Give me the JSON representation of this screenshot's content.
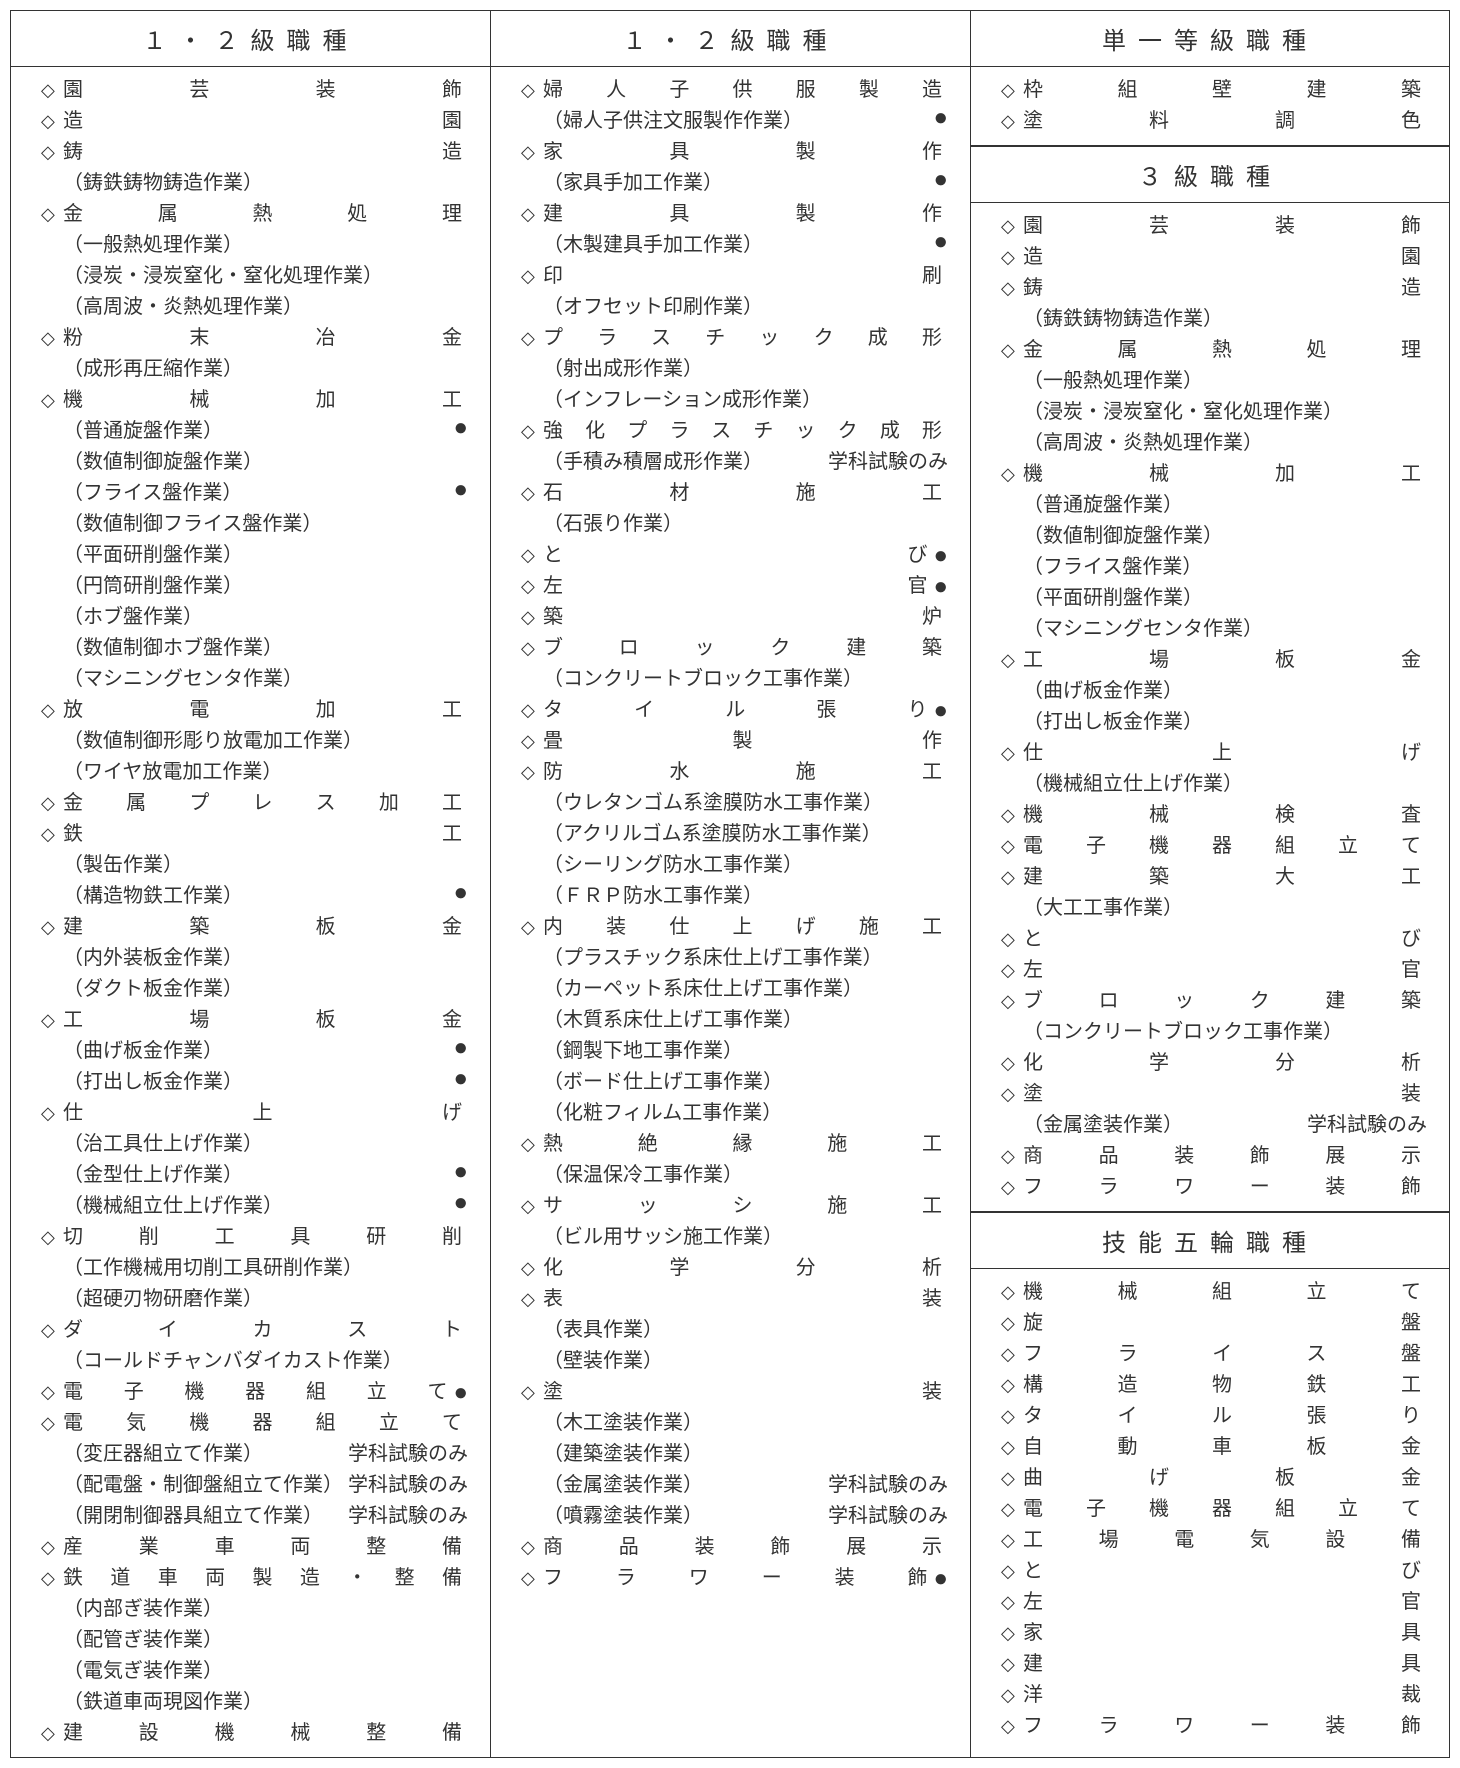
{
  "col1": {
    "header": "１・２級職種",
    "items": [
      {
        "type": "cat",
        "text": "園芸装飾"
      },
      {
        "type": "cat",
        "text": "造園"
      },
      {
        "type": "cat",
        "text": "鋳造"
      },
      {
        "type": "sub",
        "text": "（鋳鉄鋳物鋳造作業）"
      },
      {
        "type": "cat",
        "text": "金属熱処理"
      },
      {
        "type": "sub",
        "text": "（一般熱処理作業）"
      },
      {
        "type": "sub",
        "text": "（浸炭・浸炭窒化・窒化処理作業）"
      },
      {
        "type": "sub",
        "text": "（高周波・炎熱処理作業）"
      },
      {
        "type": "cat",
        "text": "粉末冶金"
      },
      {
        "type": "sub",
        "text": "（成形再圧縮作業）"
      },
      {
        "type": "cat",
        "text": "機械加工"
      },
      {
        "type": "sub",
        "text": "（普通旋盤作業）",
        "dot": true
      },
      {
        "type": "sub",
        "text": "（数値制御旋盤作業）"
      },
      {
        "type": "sub",
        "text": "（フライス盤作業）",
        "dot": true
      },
      {
        "type": "sub",
        "text": "（数値制御フライス盤作業）"
      },
      {
        "type": "sub",
        "text": "（平面研削盤作業）"
      },
      {
        "type": "sub",
        "text": "（円筒研削盤作業）"
      },
      {
        "type": "sub",
        "text": "（ホブ盤作業）"
      },
      {
        "type": "sub",
        "text": "（数値制御ホブ盤作業）"
      },
      {
        "type": "sub",
        "text": "（マシニングセンタ作業）"
      },
      {
        "type": "cat",
        "text": "放電加工"
      },
      {
        "type": "sub",
        "text": "（数値制御形彫り放電加工作業）"
      },
      {
        "type": "sub",
        "text": "（ワイヤ放電加工作業）"
      },
      {
        "type": "cat",
        "text": "金属プレス加工"
      },
      {
        "type": "cat",
        "text": "鉄工"
      },
      {
        "type": "sub",
        "text": "（製缶作業）"
      },
      {
        "type": "sub",
        "text": "（構造物鉄工作業）",
        "dot": true
      },
      {
        "type": "cat",
        "text": "建築板金"
      },
      {
        "type": "sub",
        "text": "（内外装板金作業）"
      },
      {
        "type": "sub",
        "text": "（ダクト板金作業）"
      },
      {
        "type": "cat",
        "text": "工場板金"
      },
      {
        "type": "sub",
        "text": "（曲げ板金作業）",
        "dot": true
      },
      {
        "type": "sub",
        "text": "（打出し板金作業）",
        "dot": true
      },
      {
        "type": "cat",
        "text": "仕上げ"
      },
      {
        "type": "sub",
        "text": "（治工具仕上げ作業）"
      },
      {
        "type": "sub",
        "text": "（金型仕上げ作業）",
        "dot": true
      },
      {
        "type": "sub",
        "text": "（機械組立仕上げ作業）",
        "dot": true
      },
      {
        "type": "cat",
        "text": "切削工具研削"
      },
      {
        "type": "sub",
        "text": "（工作機械用切削工具研削作業）"
      },
      {
        "type": "sub",
        "text": "（超硬刃物研磨作業）"
      },
      {
        "type": "cat",
        "text": "ダイカスト"
      },
      {
        "type": "sub",
        "text": "（コールドチャンバダイカスト作業）"
      },
      {
        "type": "cat",
        "text": "電子機器組立て",
        "dot": true
      },
      {
        "type": "cat",
        "text": "電気機器組立て"
      },
      {
        "type": "sub",
        "text": "（変圧器組立て作業）",
        "note": "学科試験のみ"
      },
      {
        "type": "sub",
        "text": "（配電盤・制御盤組立て作業）",
        "note": "学科試験のみ"
      },
      {
        "type": "sub",
        "text": "（開閉制御器具組立て作業）",
        "note": "学科試験のみ"
      },
      {
        "type": "cat",
        "text": "産業車両整備"
      },
      {
        "type": "cat",
        "text": "鉄道車両製造・整備"
      },
      {
        "type": "sub",
        "text": "（内部ぎ装作業）"
      },
      {
        "type": "sub",
        "text": "（配管ぎ装作業）"
      },
      {
        "type": "sub",
        "text": "（電気ぎ装作業）"
      },
      {
        "type": "sub",
        "text": "（鉄道車両現図作業）"
      },
      {
        "type": "cat",
        "text": "建設機械整備"
      }
    ]
  },
  "col2": {
    "header": "１・２級職種",
    "items": [
      {
        "type": "cat",
        "text": "婦人子供服製造"
      },
      {
        "type": "sub",
        "text": "（婦人子供注文服製作作業）",
        "dot": true
      },
      {
        "type": "cat",
        "text": "家具製作"
      },
      {
        "type": "sub",
        "text": "（家具手加工作業）",
        "dot": true
      },
      {
        "type": "cat",
        "text": "建具製作"
      },
      {
        "type": "sub",
        "text": "（木製建具手加工作業）",
        "dot": true
      },
      {
        "type": "cat",
        "text": "印刷"
      },
      {
        "type": "sub",
        "text": "（オフセット印刷作業）"
      },
      {
        "type": "cat",
        "text": "プラスチック成形"
      },
      {
        "type": "sub",
        "text": "（射出成形作業）"
      },
      {
        "type": "sub",
        "text": "（インフレーション成形作業）"
      },
      {
        "type": "cat",
        "text": "強化プラスチック成形"
      },
      {
        "type": "sub",
        "text": "（手積み積層成形作業）",
        "note": "学科試験のみ"
      },
      {
        "type": "cat",
        "text": "石材施工"
      },
      {
        "type": "sub",
        "text": "（石張り作業）"
      },
      {
        "type": "cat",
        "text": "とび",
        "dot": true
      },
      {
        "type": "cat",
        "text": "左官",
        "dot": true
      },
      {
        "type": "cat",
        "text": "築炉"
      },
      {
        "type": "cat",
        "text": "ブロック建築"
      },
      {
        "type": "sub",
        "text": "（コンクリートブロック工事作業）"
      },
      {
        "type": "cat",
        "text": "タイル張り",
        "dot": true
      },
      {
        "type": "cat",
        "text": "畳製作"
      },
      {
        "type": "cat",
        "text": "防水施工"
      },
      {
        "type": "sub",
        "text": "（ウレタンゴム系塗膜防水工事作業）"
      },
      {
        "type": "sub",
        "text": "（アクリルゴム系塗膜防水工事作業）"
      },
      {
        "type": "sub",
        "text": "（シーリング防水工事作業）"
      },
      {
        "type": "sub",
        "text": "（ＦＲＰ防水工事作業）"
      },
      {
        "type": "cat",
        "text": "内装仕上げ施工"
      },
      {
        "type": "sub",
        "text": "（プラスチック系床仕上げ工事作業）"
      },
      {
        "type": "sub",
        "text": "（カーペット系床仕上げ工事作業）"
      },
      {
        "type": "sub",
        "text": "（木質系床仕上げ工事作業）"
      },
      {
        "type": "sub",
        "text": "（鋼製下地工事作業）"
      },
      {
        "type": "sub",
        "text": "（ボード仕上げ工事作業）"
      },
      {
        "type": "sub",
        "text": "（化粧フィルム工事作業）"
      },
      {
        "type": "cat",
        "text": "熱絶縁施工"
      },
      {
        "type": "sub",
        "text": "（保温保冷工事作業）"
      },
      {
        "type": "cat",
        "text": "サッシ施工"
      },
      {
        "type": "sub",
        "text": "（ビル用サッシ施工作業）"
      },
      {
        "type": "cat",
        "text": "化学分析"
      },
      {
        "type": "cat",
        "text": "表装"
      },
      {
        "type": "sub",
        "text": "（表具作業）"
      },
      {
        "type": "sub",
        "text": "（壁装作業）"
      },
      {
        "type": "cat",
        "text": "塗装"
      },
      {
        "type": "sub",
        "text": "（木工塗装作業）"
      },
      {
        "type": "sub",
        "text": "（建築塗装作業）"
      },
      {
        "type": "sub",
        "text": "（金属塗装作業）",
        "note": "学科試験のみ"
      },
      {
        "type": "sub",
        "text": "（噴霧塗装作業）",
        "note": "学科試験のみ"
      },
      {
        "type": "cat",
        "text": "商品装飾展示"
      },
      {
        "type": "cat",
        "text": "フラワー装飾",
        "dot": true
      }
    ]
  },
  "col3": [
    {
      "header": "単一等級職種",
      "items": [
        {
          "type": "cat",
          "text": "枠組壁建築"
        },
        {
          "type": "cat",
          "text": "塗料調色"
        }
      ]
    },
    {
      "header": "３級職種",
      "items": [
        {
          "type": "cat",
          "text": "園芸装飾"
        },
        {
          "type": "cat",
          "text": "造園"
        },
        {
          "type": "cat",
          "text": "鋳造"
        },
        {
          "type": "sub",
          "text": "（鋳鉄鋳物鋳造作業）"
        },
        {
          "type": "cat",
          "text": "金属熱処理"
        },
        {
          "type": "sub",
          "text": "（一般熱処理作業）"
        },
        {
          "type": "sub",
          "text": "（浸炭・浸炭窒化・窒化処理作業）"
        },
        {
          "type": "sub",
          "text": "（高周波・炎熱処理作業）"
        },
        {
          "type": "cat",
          "text": "機械加工"
        },
        {
          "type": "sub",
          "text": "（普通旋盤作業）"
        },
        {
          "type": "sub",
          "text": "（数値制御旋盤作業）"
        },
        {
          "type": "sub",
          "text": "（フライス盤作業）"
        },
        {
          "type": "sub",
          "text": "（平面研削盤作業）"
        },
        {
          "type": "sub",
          "text": "（マシニングセンタ作業）"
        },
        {
          "type": "cat",
          "text": "工場板金"
        },
        {
          "type": "sub",
          "text": "（曲げ板金作業）"
        },
        {
          "type": "sub",
          "text": "（打出し板金作業）"
        },
        {
          "type": "cat",
          "text": "仕上げ"
        },
        {
          "type": "sub",
          "text": "（機械組立仕上げ作業）"
        },
        {
          "type": "cat",
          "text": "機械検査"
        },
        {
          "type": "cat",
          "text": "電子機器組立て"
        },
        {
          "type": "cat",
          "text": "建築大工"
        },
        {
          "type": "sub",
          "text": "（大工工事作業）"
        },
        {
          "type": "cat",
          "text": "とび"
        },
        {
          "type": "cat",
          "text": "左官"
        },
        {
          "type": "cat",
          "text": "ブロック建築"
        },
        {
          "type": "sub",
          "text": "（コンクリートブロック工事作業）"
        },
        {
          "type": "cat",
          "text": "化学分析"
        },
        {
          "type": "cat",
          "text": "塗装"
        },
        {
          "type": "sub",
          "text": "（金属塗装作業）",
          "note": "学科試験のみ"
        },
        {
          "type": "cat",
          "text": "商品装飾展示"
        },
        {
          "type": "cat",
          "text": "フラワー装飾"
        }
      ]
    },
    {
      "header": "技能五輪職種",
      "items": [
        {
          "type": "cat",
          "text": "機械組立て"
        },
        {
          "type": "cat",
          "text": "旋盤"
        },
        {
          "type": "cat",
          "text": "フライス盤"
        },
        {
          "type": "cat",
          "text": "構造物鉄工"
        },
        {
          "type": "cat",
          "text": "タイル張り"
        },
        {
          "type": "cat",
          "text": "自動車板金"
        },
        {
          "type": "cat",
          "text": "曲げ板金"
        },
        {
          "type": "cat",
          "text": "電子機器組立て"
        },
        {
          "type": "cat",
          "text": "工場電気設備"
        },
        {
          "type": "cat",
          "text": "とび"
        },
        {
          "type": "cat",
          "text": "左官"
        },
        {
          "type": "cat",
          "text": "家具"
        },
        {
          "type": "cat",
          "text": "建具"
        },
        {
          "type": "cat",
          "text": "洋裁"
        },
        {
          "type": "cat",
          "text": "フラワー装飾"
        }
      ]
    }
  ]
}
